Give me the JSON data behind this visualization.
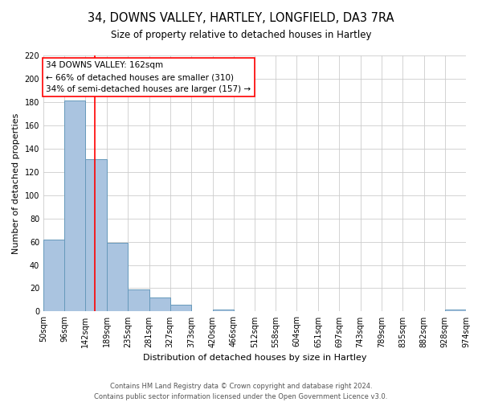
{
  "title": "34, DOWNS VALLEY, HARTLEY, LONGFIELD, DA3 7RA",
  "subtitle": "Size of property relative to detached houses in Hartley",
  "xlabel": "Distribution of detached houses by size in Hartley",
  "ylabel": "Number of detached properties",
  "bin_edges": [
    50,
    96,
    142,
    189,
    235,
    281,
    327,
    373,
    420,
    466,
    512,
    558,
    604,
    651,
    697,
    743,
    789,
    835,
    882,
    928,
    974
  ],
  "bar_heights": [
    62,
    181,
    131,
    59,
    19,
    12,
    6,
    0,
    2,
    0,
    0,
    0,
    0,
    0,
    0,
    0,
    0,
    0,
    0,
    2
  ],
  "bar_color": "#aac4e0",
  "bar_edge_color": "#6699bb",
  "red_line_x": 162,
  "annotation_title": "34 DOWNS VALLEY: 162sqm",
  "annotation_line1": "← 66% of detached houses are smaller (310)",
  "annotation_line2": "34% of semi-detached houses are larger (157) →",
  "ylim": [
    0,
    220
  ],
  "yticks": [
    0,
    20,
    40,
    60,
    80,
    100,
    120,
    140,
    160,
    180,
    200,
    220
  ],
  "tick_labels": [
    "50sqm",
    "96sqm",
    "142sqm",
    "189sqm",
    "235sqm",
    "281sqm",
    "327sqm",
    "373sqm",
    "420sqm",
    "466sqm",
    "512sqm",
    "558sqm",
    "604sqm",
    "651sqm",
    "697sqm",
    "743sqm",
    "789sqm",
    "835sqm",
    "882sqm",
    "928sqm",
    "974sqm"
  ],
  "footer_line1": "Contains HM Land Registry data © Crown copyright and database right 2024.",
  "footer_line2": "Contains public sector information licensed under the Open Government Licence v3.0.",
  "background_color": "#ffffff",
  "grid_color": "#cccccc",
  "title_fontsize": 10.5,
  "subtitle_fontsize": 8.5,
  "xlabel_fontsize": 8,
  "ylabel_fontsize": 8,
  "tick_fontsize": 7,
  "annotation_fontsize": 7.5,
  "footer_fontsize": 6
}
